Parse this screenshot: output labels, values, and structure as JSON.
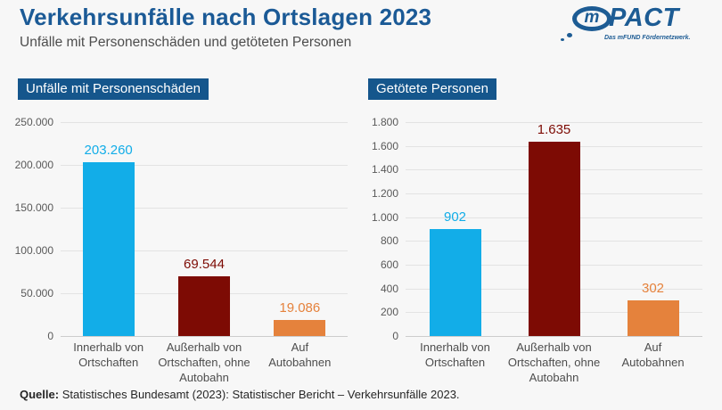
{
  "header": {
    "title": "Verkehrsunfälle nach Ortslagen 2023",
    "subtitle": "Unfälle mit Personenschäden und getöteten Personen"
  },
  "logo": {
    "bubble_letter": "m",
    "wordmark": "PACT",
    "tagline": "Das mFUND Fördernetzwerk."
  },
  "source": {
    "label": "Quelle:",
    "text": " Statistisches Bundesamt (2023): Statistischer Bericht – Verkehrsunfälle 2023."
  },
  "colors": {
    "badge_blue": "#15568C",
    "title_blue": "#1B5A96",
    "bar_cyan": "#12ADE8",
    "bar_darkred": "#7D0B04",
    "bar_orange": "#E5823C"
  },
  "chart_data": [
    {
      "type": "bar",
      "title": "Unfälle mit Personenschäden",
      "categories": [
        [
          "Innerhalb von",
          "Ortschaften"
        ],
        [
          "Außerhalb von",
          "Ortschaften, ohne",
          "Autobahn"
        ],
        [
          "Auf",
          "Autobahnen"
        ]
      ],
      "values": [
        203260,
        69544,
        19086
      ],
      "value_labels": [
        "203.260",
        "69.544",
        "19.086"
      ],
      "bar_colors": [
        "#12ADE8",
        "#7D0B04",
        "#E5823C"
      ],
      "xlabel": "",
      "ylabel": "",
      "ylim": [
        0,
        250000
      ],
      "yticks": [
        "250.000",
        "200.000",
        "150.000",
        "100.000",
        "50.000",
        "0"
      ],
      "grid": true,
      "legend": false
    },
    {
      "type": "bar",
      "title": "Getötete Personen",
      "categories": [
        [
          "Innerhalb von",
          "Ortschaften"
        ],
        [
          "Außerhalb von",
          "Ortschaften, ohne",
          "Autobahn"
        ],
        [
          "Auf",
          "Autobahnen"
        ]
      ],
      "values": [
        902,
        1635,
        302
      ],
      "value_labels": [
        "902",
        "1.635",
        "302"
      ],
      "bar_colors": [
        "#12ADE8",
        "#7D0B04",
        "#E5823C"
      ],
      "xlabel": "",
      "ylabel": "",
      "ylim": [
        0,
        1800
      ],
      "yticks": [
        "1.800",
        "1.600",
        "1.400",
        "1.200",
        "1.000",
        "800",
        "600",
        "400",
        "200",
        "0"
      ],
      "grid": true,
      "legend": false
    }
  ]
}
